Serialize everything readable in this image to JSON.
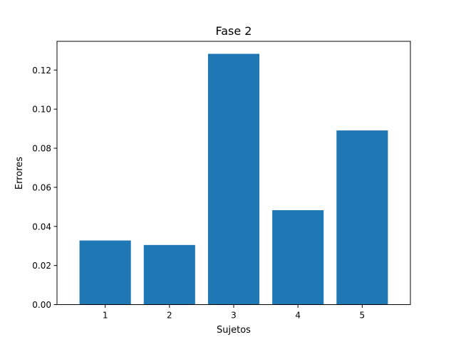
{
  "chart_data": {
    "type": "bar",
    "title": "Fase 2",
    "xlabel": "Sujetos",
    "ylabel": "Errores",
    "categories": [
      "1",
      "2",
      "3",
      "4",
      "5"
    ],
    "values": [
      0.0328,
      0.0305,
      0.1283,
      0.0483,
      0.0891
    ],
    "ylim": [
      0,
      0.1347
    ],
    "yticks": [
      0.0,
      0.02,
      0.04,
      0.06,
      0.08,
      0.1,
      0.12
    ],
    "ytick_labels": [
      "0.00",
      "0.02",
      "0.04",
      "0.06",
      "0.08",
      "0.10",
      "0.12"
    ],
    "bar_color": "#1f77b4",
    "grid": false,
    "legend": false
  }
}
